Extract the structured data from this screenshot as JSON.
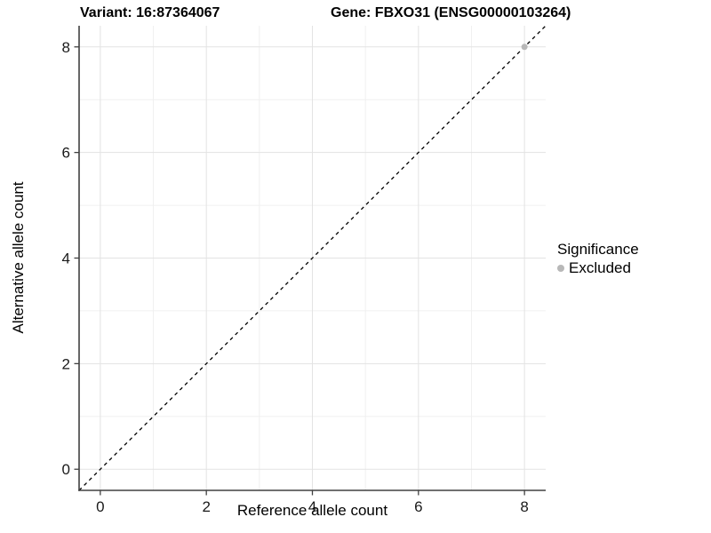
{
  "plot": {
    "title_left": "Variant: 16:87364067",
    "title_right": "Gene: FBXO31 (ENSG00000103264)"
  },
  "chart_data": {
    "type": "scatter",
    "title": "Variant: 16:87364067 | Gene: FBXO31 (ENSG00000103264)",
    "xlabel": "Reference allele count",
    "ylabel": "Alternative allele count",
    "xlim": [
      -0.4,
      8.4
    ],
    "ylim": [
      -0.4,
      8.4
    ],
    "xticks": [
      0,
      2,
      4,
      6,
      8
    ],
    "yticks": [
      0,
      2,
      4,
      6,
      8
    ],
    "xminor": [
      1,
      3,
      5,
      7
    ],
    "yminor": [
      1,
      3,
      5,
      7
    ],
    "grid": "on",
    "legend_position": "right",
    "reference_line": {
      "type": "identity",
      "slope": 1,
      "intercept": 0,
      "style": "dashed",
      "color": "#000000"
    },
    "series": [
      {
        "name": "Excluded",
        "color": "#b8b8b8",
        "points": [
          {
            "x": 8,
            "y": 8
          }
        ]
      }
    ],
    "legend": {
      "title": "Significance",
      "items": [
        {
          "label": "Excluded",
          "color": "#b8b8b8"
        }
      ]
    }
  },
  "colors": {
    "background": "#ffffff",
    "grid_major": "#e3e3e3",
    "grid_minor": "#f0f0f0",
    "axis_line": "#404040",
    "tick_mark": "#404040",
    "tick_text": "#1a1a1a"
  }
}
